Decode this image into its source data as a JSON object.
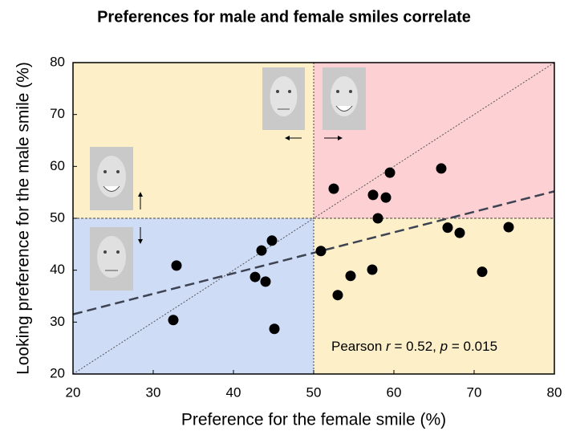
{
  "chart_data": {
    "type": "scatter",
    "title": "Preferences for male and female smiles correlate",
    "x_label": "Preference for the female smile (%)",
    "y_label": "Looking preference for the male smile (%)",
    "xlim": [
      20,
      80
    ],
    "ylim": [
      20,
      80
    ],
    "xticks": [
      20,
      30,
      40,
      50,
      60,
      70,
      80
    ],
    "yticks": [
      20,
      30,
      40,
      50,
      60,
      70,
      80
    ],
    "divider": 50,
    "quadrant_colors": {
      "top_left": "#fdf0c8",
      "top_right": "#fdd0d4",
      "bottom_left": "#cfdcf6",
      "bottom_right": "#fdf0c8"
    },
    "series": [
      {
        "color": "#000000",
        "x": [
          32.5,
          32.9,
          42.7,
          43.5,
          44.0,
          44.8,
          45.1,
          50.9,
          52.5,
          53.0,
          54.6,
          57.3,
          57.4,
          58.0,
          59.0,
          59.5,
          65.9,
          66.7,
          68.2,
          71.0,
          74.3
        ],
        "values": [
          30.4,
          40.9,
          38.7,
          43.8,
          37.8,
          45.7,
          28.7,
          43.7,
          55.7,
          35.2,
          38.9,
          40.1,
          54.5,
          50.0,
          54.0,
          58.8,
          59.6,
          48.2,
          47.2,
          39.7,
          48.3
        ]
      }
    ],
    "trend_line": {
      "x": [
        20,
        80
      ],
      "values": [
        31.5,
        55.2
      ],
      "color": "#3d4352"
    },
    "identity_line": {
      "x": [
        20,
        80
      ],
      "values": [
        20,
        80
      ]
    },
    "annotation": [
      "Pearson ",
      "r",
      " = 0.52, ",
      "p",
      " = 0.015"
    ]
  }
}
